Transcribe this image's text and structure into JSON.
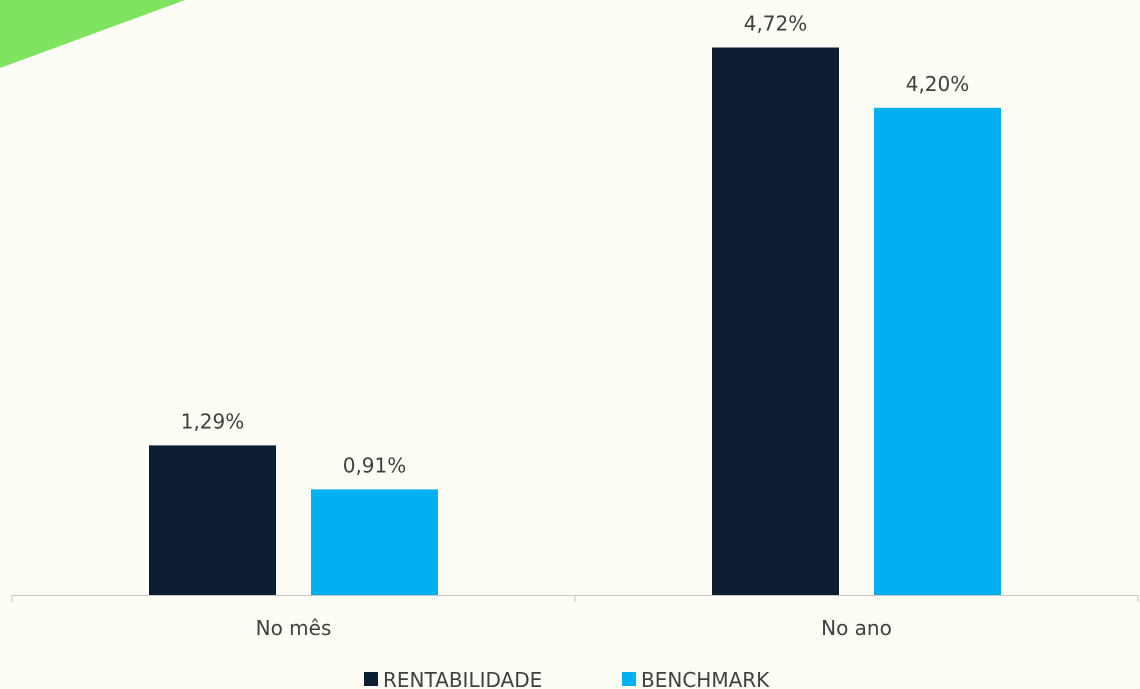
{
  "colors": {
    "background": "#fdfdf6",
    "accent_shape": "#7ee35e",
    "axis": "#c8c8c8"
  },
  "chart_data": {
    "type": "bar",
    "categories": [
      "No mês",
      "No ano"
    ],
    "series": [
      {
        "name": "RENTABILIDADE",
        "values": [
          1.29,
          4.72
        ],
        "labels": [
          "1,29%",
          "4,72%"
        ],
        "color": "#0d1e33"
      },
      {
        "name": "BENCHMARK",
        "values": [
          0.91,
          4.2
        ],
        "labels": [
          "0,91%",
          "4,20%"
        ],
        "color": "#00b0f0"
      }
    ],
    "ylim": [
      0,
      5.0
    ],
    "grid": false,
    "legend_position": "bottom"
  }
}
